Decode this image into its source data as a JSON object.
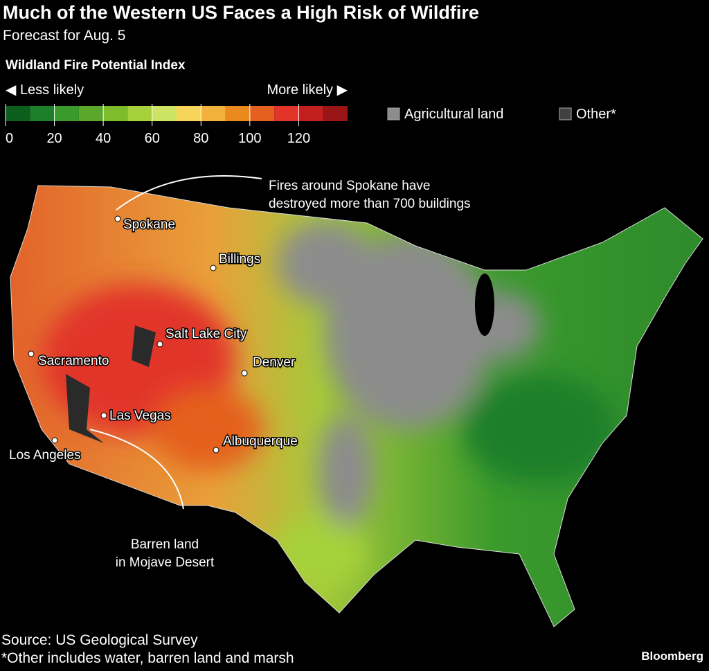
{
  "header": {
    "title": "Much of the Western US Faces a High Risk of Wildfire",
    "subtitle": "Forecast for Aug. 5"
  },
  "legend": {
    "title": "Wildland Fire Potential Index",
    "less": "◀ Less likely",
    "more": "More likely ▶",
    "colors": [
      "#0b5e1c",
      "#1c7f2a",
      "#3a9a2c",
      "#5aa72c",
      "#7fbc2c",
      "#a6d13a",
      "#cde364",
      "#f6d55a",
      "#f2b13a",
      "#ea8a1e",
      "#e4601f",
      "#e2352a",
      "#c41f1f",
      "#9a1515"
    ],
    "range": [
      0,
      140
    ],
    "ticks": [
      0,
      20,
      40,
      60,
      80,
      100,
      120
    ],
    "categories": [
      {
        "label": "Agricultural land",
        "color": "#8c8c8c"
      },
      {
        "label": "Other*",
        "color": "#404040"
      }
    ]
  },
  "cities": [
    "Spokane",
    "Billings",
    "Salt Lake City",
    "Denver",
    "Sacramento",
    "Las Vegas",
    "Albuquerque",
    "Los Angeles"
  ],
  "annotations": [
    {
      "lines": [
        "Fires around Spokane have",
        "destroyed more than 700 buildings"
      ]
    },
    {
      "lines": [
        "Barren land",
        "in Mojave Desert"
      ]
    }
  ],
  "footer": {
    "source": "Source: US Geological Survey",
    "note": "*Other includes water, barren land and marsh",
    "brand": "Bloomberg"
  }
}
